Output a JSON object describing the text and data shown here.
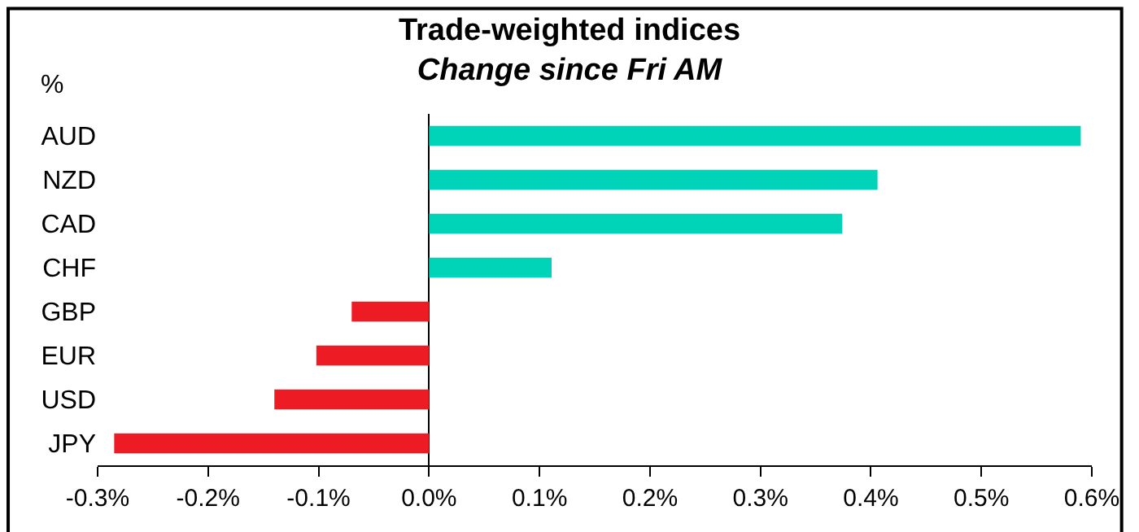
{
  "chart_data": {
    "type": "bar",
    "orientation": "horizontal",
    "title": "Trade-weighted indices",
    "subtitle": "Change since Fri AM",
    "ylabel": "%",
    "categories": [
      "AUD",
      "NZD",
      "CAD",
      "CHF",
      "GBP",
      "EUR",
      "USD",
      "JPY"
    ],
    "values": [
      0.59,
      0.406,
      0.374,
      0.111,
      -0.07,
      -0.102,
      -0.14,
      -0.285
    ],
    "colors": [
      "#00d4b8",
      "#00d4b8",
      "#00d4b8",
      "#00d4b8",
      "#ed1c24",
      "#ed1c24",
      "#ed1c24",
      "#ed1c24"
    ],
    "xlim": [
      -0.3,
      0.6
    ],
    "xticks": [
      {
        "value": -0.3,
        "label": "-0.3%"
      },
      {
        "value": -0.2,
        "label": "-0.2%"
      },
      {
        "value": -0.1,
        "label": "-0.1%"
      },
      {
        "value": 0,
        "label": "0.0%"
      },
      {
        "value": 0.1,
        "label": "0.1%"
      },
      {
        "value": 0.2,
        "label": "0.2%"
      },
      {
        "value": 0.3,
        "label": "0.3%"
      },
      {
        "value": 0.4,
        "label": "0.4%"
      },
      {
        "value": 0.5,
        "label": "0.5%"
      },
      {
        "value": 0.6,
        "label": "0.6%"
      }
    ]
  }
}
